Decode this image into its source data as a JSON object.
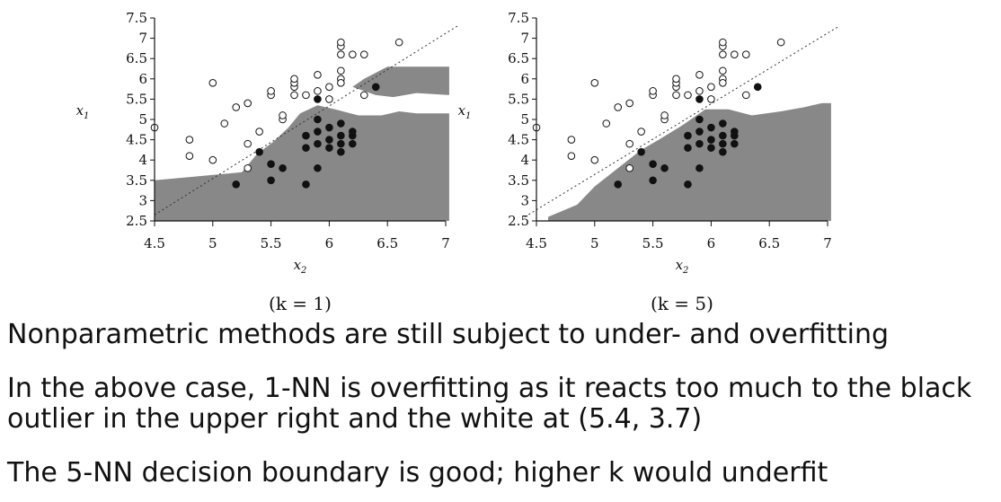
{
  "chart_data": [
    {
      "type": "scatter",
      "title": "",
      "caption": "(k = 1)",
      "xlabel": "x2",
      "ylabel": "x1",
      "xlim": [
        4.5,
        7
      ],
      "ylim": [
        2.5,
        7.5
      ],
      "xticks": [
        "4.5",
        "5",
        "5.5",
        "6",
        "6.5",
        "7"
      ],
      "yticks": [
        "2.5",
        "3",
        "3.5",
        "4",
        "4.5",
        "5",
        "5.5",
        "6",
        "6.5",
        "7",
        "7.5"
      ],
      "region_color": "#888888",
      "diagonal_line": {
        "from": [
          4.5,
          2.65
        ],
        "to": [
          7.1,
          7.3
        ],
        "style": "dotted"
      },
      "region": [
        [
          4.5,
          3.5
        ],
        [
          5.25,
          3.7
        ],
        [
          5.38,
          4.15
        ],
        [
          5.52,
          4.45
        ],
        [
          5.65,
          4.8
        ],
        [
          5.75,
          5.15
        ],
        [
          5.9,
          5.35
        ],
        [
          6.05,
          5.25
        ],
        [
          6.25,
          5.1
        ],
        [
          6.45,
          5.1
        ],
        [
          6.6,
          5.2
        ],
        [
          6.75,
          5.15
        ],
        [
          7.03,
          5.15
        ],
        [
          7.03,
          2.5
        ],
        [
          4.5,
          2.5
        ]
      ],
      "region_island": [
        [
          6.2,
          5.8
        ],
        [
          6.3,
          6.0
        ],
        [
          6.5,
          6.3
        ],
        [
          7.03,
          6.3
        ],
        [
          7.03,
          5.6
        ],
        [
          6.75,
          5.65
        ],
        [
          6.55,
          5.55
        ],
        [
          6.4,
          5.6
        ],
        [
          6.3,
          5.7
        ]
      ],
      "series": [
        {
          "marker": "filled-black-circle",
          "points": [
            [
              5.2,
              3.4
            ],
            [
              5.5,
              3.5
            ],
            [
              5.8,
              3.4
            ],
            [
              5.4,
              4.2
            ],
            [
              5.5,
              3.9
            ],
            [
              5.6,
              3.8
            ],
            [
              5.9,
              3.8
            ],
            [
              5.8,
              4.3
            ],
            [
              5.8,
              4.6
            ],
            [
              5.9,
              4.4
            ],
            [
              5.9,
              4.7
            ],
            [
              5.9,
              5.0
            ],
            [
              6.0,
              4.3
            ],
            [
              6.0,
              4.5
            ],
            [
              6.0,
              4.8
            ],
            [
              6.1,
              4.2
            ],
            [
              6.1,
              4.4
            ],
            [
              6.1,
              4.6
            ],
            [
              6.1,
              4.9
            ],
            [
              6.2,
              4.4
            ],
            [
              6.2,
              4.6
            ],
            [
              6.2,
              4.7
            ],
            [
              5.9,
              5.5
            ],
            [
              6.4,
              5.8
            ]
          ]
        },
        {
          "marker": "open-circle",
          "points": [
            [
              4.5,
              4.8
            ],
            [
              4.8,
              4.5
            ],
            [
              4.8,
              4.1
            ],
            [
              5.0,
              4.0
            ],
            [
              5.0,
              5.9
            ],
            [
              5.1,
              4.9
            ],
            [
              5.2,
              5.3
            ],
            [
              5.3,
              5.4
            ],
            [
              5.3,
              4.4
            ],
            [
              5.3,
              3.8
            ],
            [
              5.4,
              4.7
            ],
            [
              5.5,
              5.6
            ],
            [
              5.5,
              5.7
            ],
            [
              5.6,
              5.0
            ],
            [
              5.6,
              5.1
            ],
            [
              5.7,
              5.6
            ],
            [
              5.7,
              5.8
            ],
            [
              5.7,
              5.9
            ],
            [
              5.7,
              6.0
            ],
            [
              5.8,
              5.6
            ],
            [
              5.9,
              5.7
            ],
            [
              5.9,
              6.1
            ],
            [
              6.0,
              5.5
            ],
            [
              6.0,
              5.8
            ],
            [
              6.1,
              6.0
            ],
            [
              6.1,
              5.9
            ],
            [
              6.1,
              6.2
            ],
            [
              6.1,
              6.6
            ],
            [
              6.1,
              6.8
            ],
            [
              6.1,
              6.9
            ],
            [
              6.2,
              6.6
            ],
            [
              6.3,
              6.6
            ],
            [
              6.3,
              5.6
            ],
            [
              6.6,
              6.9
            ]
          ]
        }
      ]
    },
    {
      "type": "scatter",
      "title": "",
      "caption": "(k = 5)",
      "xlabel": "x2",
      "ylabel": "x1",
      "xlim": [
        4.5,
        7
      ],
      "ylim": [
        2.5,
        7.5
      ],
      "xticks": [
        "4.5",
        "5",
        "5.5",
        "6",
        "6.5",
        "7"
      ],
      "yticks": [
        "2.5",
        "3",
        "3.5",
        "4",
        "4.5",
        "5",
        "5.5",
        "6",
        "6.5",
        "7",
        "7.5"
      ],
      "region_color": "#888888",
      "diagonal_line": {
        "from": [
          4.4,
          2.6
        ],
        "to": [
          7.1,
          7.3
        ],
        "style": "dotted"
      },
      "region": [
        [
          4.6,
          2.6
        ],
        [
          4.85,
          2.9
        ],
        [
          5.0,
          3.35
        ],
        [
          5.2,
          3.8
        ],
        [
          5.4,
          4.25
        ],
        [
          5.55,
          4.5
        ],
        [
          5.75,
          4.85
        ],
        [
          5.95,
          5.25
        ],
        [
          6.15,
          5.25
        ],
        [
          6.35,
          5.1
        ],
        [
          6.6,
          5.2
        ],
        [
          6.8,
          5.3
        ],
        [
          6.95,
          5.4
        ],
        [
          7.03,
          5.4
        ],
        [
          7.03,
          2.5
        ],
        [
          4.6,
          2.5
        ]
      ],
      "series": [
        {
          "marker": "filled-black-circle",
          "points": [
            [
              5.2,
              3.4
            ],
            [
              5.5,
              3.5
            ],
            [
              5.8,
              3.4
            ],
            [
              5.4,
              4.2
            ],
            [
              5.5,
              3.9
            ],
            [
              5.6,
              3.8
            ],
            [
              5.9,
              3.8
            ],
            [
              5.8,
              4.3
            ],
            [
              5.8,
              4.6
            ],
            [
              5.9,
              4.4
            ],
            [
              5.9,
              4.7
            ],
            [
              5.9,
              5.0
            ],
            [
              6.0,
              4.3
            ],
            [
              6.0,
              4.5
            ],
            [
              6.0,
              4.8
            ],
            [
              6.1,
              4.2
            ],
            [
              6.1,
              4.4
            ],
            [
              6.1,
              4.6
            ],
            [
              6.1,
              4.9
            ],
            [
              6.2,
              4.4
            ],
            [
              6.2,
              4.6
            ],
            [
              6.2,
              4.7
            ],
            [
              5.9,
              5.5
            ],
            [
              6.4,
              5.8
            ]
          ]
        },
        {
          "marker": "open-circle",
          "points": [
            [
              4.5,
              4.8
            ],
            [
              4.8,
              4.5
            ],
            [
              4.8,
              4.1
            ],
            [
              5.0,
              4.0
            ],
            [
              5.0,
              5.9
            ],
            [
              5.1,
              4.9
            ],
            [
              5.2,
              5.3
            ],
            [
              5.3,
              5.4
            ],
            [
              5.3,
              4.4
            ],
            [
              5.3,
              3.8
            ],
            [
              5.4,
              4.7
            ],
            [
              5.5,
              5.6
            ],
            [
              5.5,
              5.7
            ],
            [
              5.6,
              5.0
            ],
            [
              5.6,
              5.1
            ],
            [
              5.7,
              5.6
            ],
            [
              5.7,
              5.8
            ],
            [
              5.7,
              5.9
            ],
            [
              5.7,
              6.0
            ],
            [
              5.8,
              5.6
            ],
            [
              5.9,
              5.7
            ],
            [
              5.9,
              6.1
            ],
            [
              6.0,
              5.5
            ],
            [
              6.0,
              5.8
            ],
            [
              6.1,
              6.0
            ],
            [
              6.1,
              5.9
            ],
            [
              6.1,
              6.2
            ],
            [
              6.1,
              6.6
            ],
            [
              6.1,
              6.8
            ],
            [
              6.1,
              6.9
            ],
            [
              6.2,
              6.6
            ],
            [
              6.3,
              6.6
            ],
            [
              6.3,
              5.6
            ],
            [
              6.6,
              6.9
            ]
          ]
        }
      ]
    }
  ],
  "bullets": [
    "Nonparametric methods are still subject to under- and overfitting",
    "In the above case, 1-NN is overfitting as it reacts too much to the black outlier in the upper right and the white at (5.4, 3.7)",
    "The 5-NN decision boundary is good; higher k would underfit"
  ]
}
